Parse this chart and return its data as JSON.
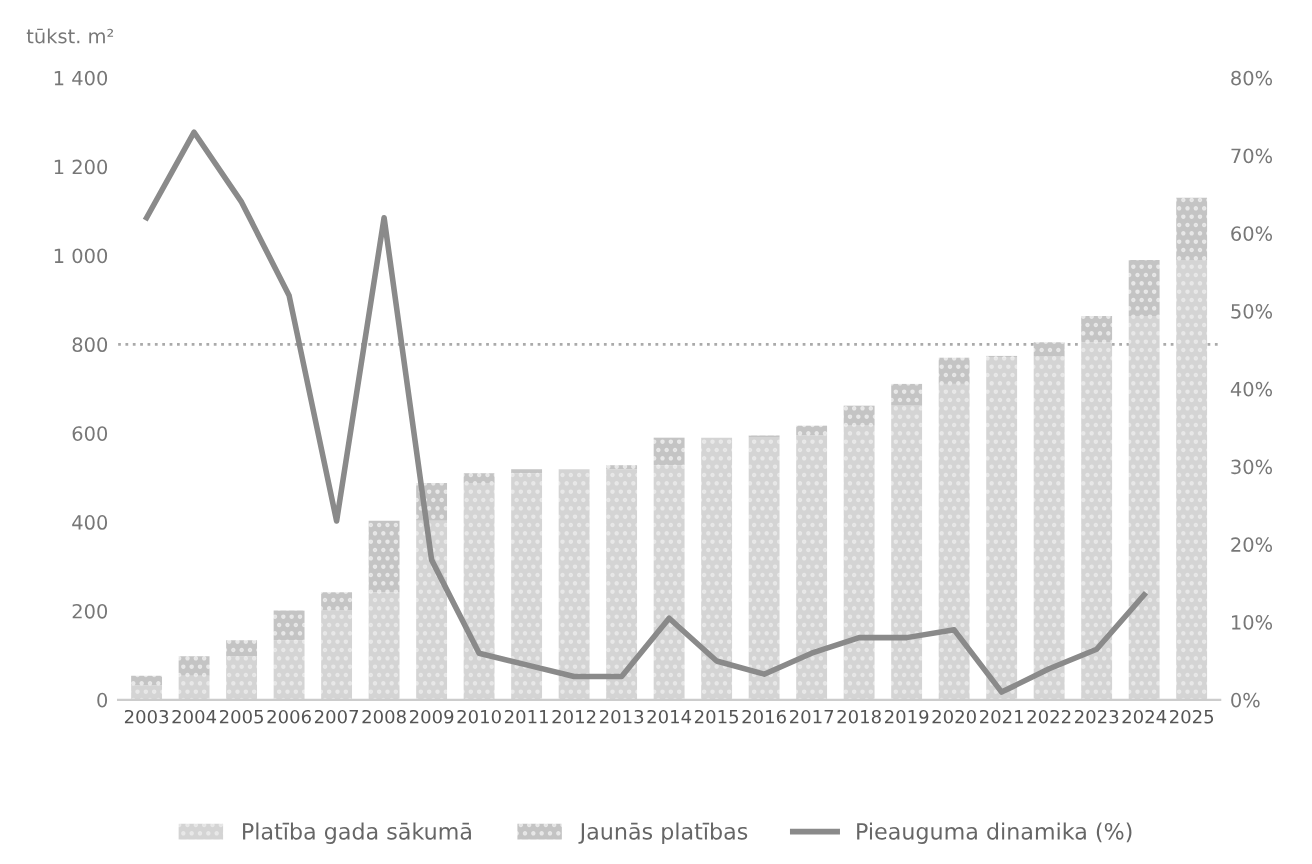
{
  "chart_data": {
    "type": "bar",
    "stacked": true,
    "ylabel": "tūkst. m²",
    "categories": [
      "2003",
      "2004",
      "2005",
      "2006",
      "2007",
      "2008",
      "2009",
      "2010",
      "2011",
      "2012",
      "2013",
      "2014",
      "2015",
      "2016",
      "2017",
      "2018",
      "2019",
      "2020",
      "2021",
      "2022",
      "2023",
      "2024",
      "2025"
    ],
    "series": [
      {
        "name": "Platība gada sākumā",
        "color": "#d4d4d4",
        "values": [
          33,
          54,
          98,
          134,
          201,
          242,
          403,
          488,
          510,
          519,
          519,
          528,
          590,
          590,
          595,
          617,
          662,
          711,
          770,
          774,
          805,
          864,
          990
        ]
      },
      {
        "name": "Jaunās platības",
        "color": "#c4c4c4",
        "values": [
          21,
          44,
          36,
          67,
          41,
          161,
          85,
          22,
          9,
          0,
          9,
          62,
          0,
          5,
          22,
          45,
          49,
          59,
          4,
          31,
          59,
          126,
          140
        ]
      },
      {
        "name": "Pieauguma dinamika (%)",
        "type": "line",
        "axis": "y2",
        "color": "#8a8a8a",
        "values": [
          62,
          73,
          64,
          52,
          23,
          62,
          18,
          6,
          4.5,
          3,
          3,
          10.5,
          5,
          3.3,
          6,
          8,
          8,
          9,
          1,
          4,
          6.5,
          13.5,
          null
        ]
      }
    ],
    "ylim": [
      0,
      1400
    ],
    "yticks": [
      {
        "value": 0,
        "label": "0"
      },
      {
        "value": 200,
        "label": "200"
      },
      {
        "value": 400,
        "label": "400"
      },
      {
        "value": 600,
        "label": "600"
      },
      {
        "value": 800,
        "label": "800"
      },
      {
        "value": 1000,
        "label": "1 000"
      },
      {
        "value": 1200,
        "label": "1 200"
      },
      {
        "value": 1400,
        "label": "1 400"
      }
    ],
    "y2lim": [
      0,
      80
    ],
    "y2ticks": [
      {
        "value": 0,
        "label": "0%"
      },
      {
        "value": 10,
        "label": "10%"
      },
      {
        "value": 20,
        "label": "20%"
      },
      {
        "value": 30,
        "label": "30%"
      },
      {
        "value": 40,
        "label": "40%"
      },
      {
        "value": 50,
        "label": "50%"
      },
      {
        "value": 60,
        "label": "60%"
      },
      {
        "value": 70,
        "label": "70%"
      },
      {
        "value": 80,
        "label": "80%"
      }
    ],
    "ref_lines": [
      {
        "axis": "y",
        "value": 800,
        "color": "#aaaaaa",
        "line_style": "dotted"
      }
    ],
    "legend": "bottom",
    "grid": false
  }
}
